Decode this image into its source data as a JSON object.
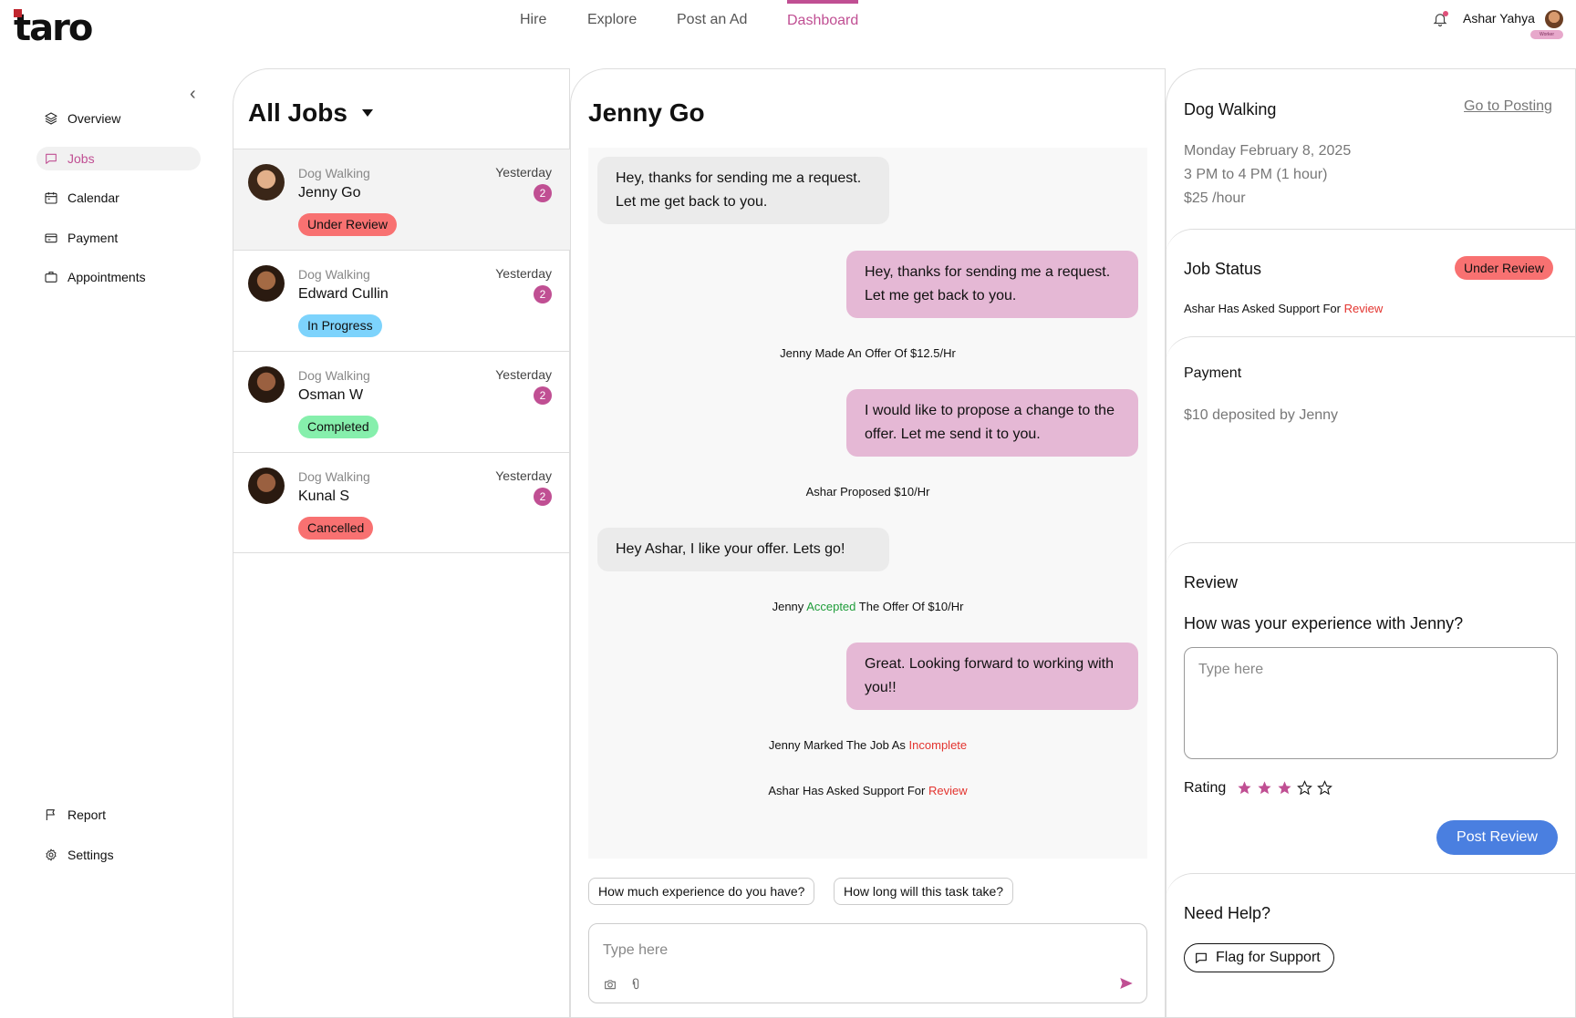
{
  "brand": {
    "logo_text": "taro",
    "accent": "#c04f93"
  },
  "topnav": {
    "items": [
      {
        "label": "Hire"
      },
      {
        "label": "Explore"
      },
      {
        "label": "Post an Ad"
      },
      {
        "label": "Dashboard",
        "active": true
      }
    ],
    "user_name": "Ashar Yahya",
    "user_badge": "Worker"
  },
  "sidebar": {
    "items": [
      {
        "label": "Overview",
        "icon": "layers-icon"
      },
      {
        "label": "Jobs",
        "icon": "chat-icon",
        "active": true
      },
      {
        "label": "Calendar",
        "icon": "calendar-icon"
      },
      {
        "label": "Payment",
        "icon": "card-icon"
      },
      {
        "label": "Appointments",
        "icon": "briefcase-icon"
      }
    ],
    "bottom": [
      {
        "label": "Report",
        "icon": "flag-icon"
      },
      {
        "label": "Settings",
        "icon": "gear-icon"
      }
    ]
  },
  "jobs": {
    "title": "All Jobs",
    "list": [
      {
        "category": "Dog Walking",
        "name": "Jenny Go",
        "time": "Yesterday",
        "count": "2",
        "status": "Under Review"
      },
      {
        "category": "Dog Walking",
        "name": "Edward Cullin",
        "time": "Yesterday",
        "count": "2",
        "status": "In Progress"
      },
      {
        "category": "Dog Walking",
        "name": "Osman W",
        "time": "Yesterday",
        "count": "2",
        "status": "Completed"
      },
      {
        "category": "Dog Walking",
        "name": "Kunal S",
        "time": "Yesterday",
        "count": "2",
        "status": "Cancelled"
      }
    ]
  },
  "chat": {
    "title": "Jenny Go",
    "messages": [
      {
        "text": "Hey, thanks for sending me a request. Let me get back to you."
      },
      {
        "text": "Hey, thanks for sending me a request. Let me get back to you."
      },
      {
        "text": "Jenny Made An Offer Of $12.5/Hr"
      },
      {
        "text": "I would like to propose a change to the offer. Let me send it to you."
      },
      {
        "text": "Ashar Proposed $10/Hr"
      },
      {
        "text": "Hey Ashar, I like your offer. Lets go!"
      },
      {
        "text_a": "Jenny ",
        "text_b": "Accepted",
        "text_c": " The Offer Of $10/Hr"
      },
      {
        "text": "Great. Looking forward to working with you!!"
      },
      {
        "text_a": "Jenny Marked The Job As ",
        "text_b": "Incomplete"
      },
      {
        "text_a": "Ashar Has Asked Support For ",
        "text_b": "Review"
      }
    ],
    "quick_replies": [
      "How much experience do you have?",
      "How long will this task take?"
    ],
    "input_placeholder": "Type here"
  },
  "details": {
    "job_title": "Dog Walking",
    "go_to_posting": "Go to Posting",
    "date": "Monday February 8, 2025",
    "time": "3 PM to 4 PM (1 hour)",
    "rate": "$25 /hour",
    "status_heading": "Job Status",
    "status_badge": "Under Review",
    "status_note_a": "Ashar Has Asked Support For ",
    "status_note_b": "Review",
    "payment_heading": "Payment",
    "payment_note": "$10 deposited by Jenny",
    "review_heading": "Review",
    "review_question": "How was your experience with Jenny?",
    "review_placeholder": "Type here",
    "rating_label": "Rating",
    "rating_value": 3,
    "rating_max": 5,
    "post_review": "Post Review",
    "help_heading": "Need Help?",
    "flag_support": "Flag for Support"
  }
}
